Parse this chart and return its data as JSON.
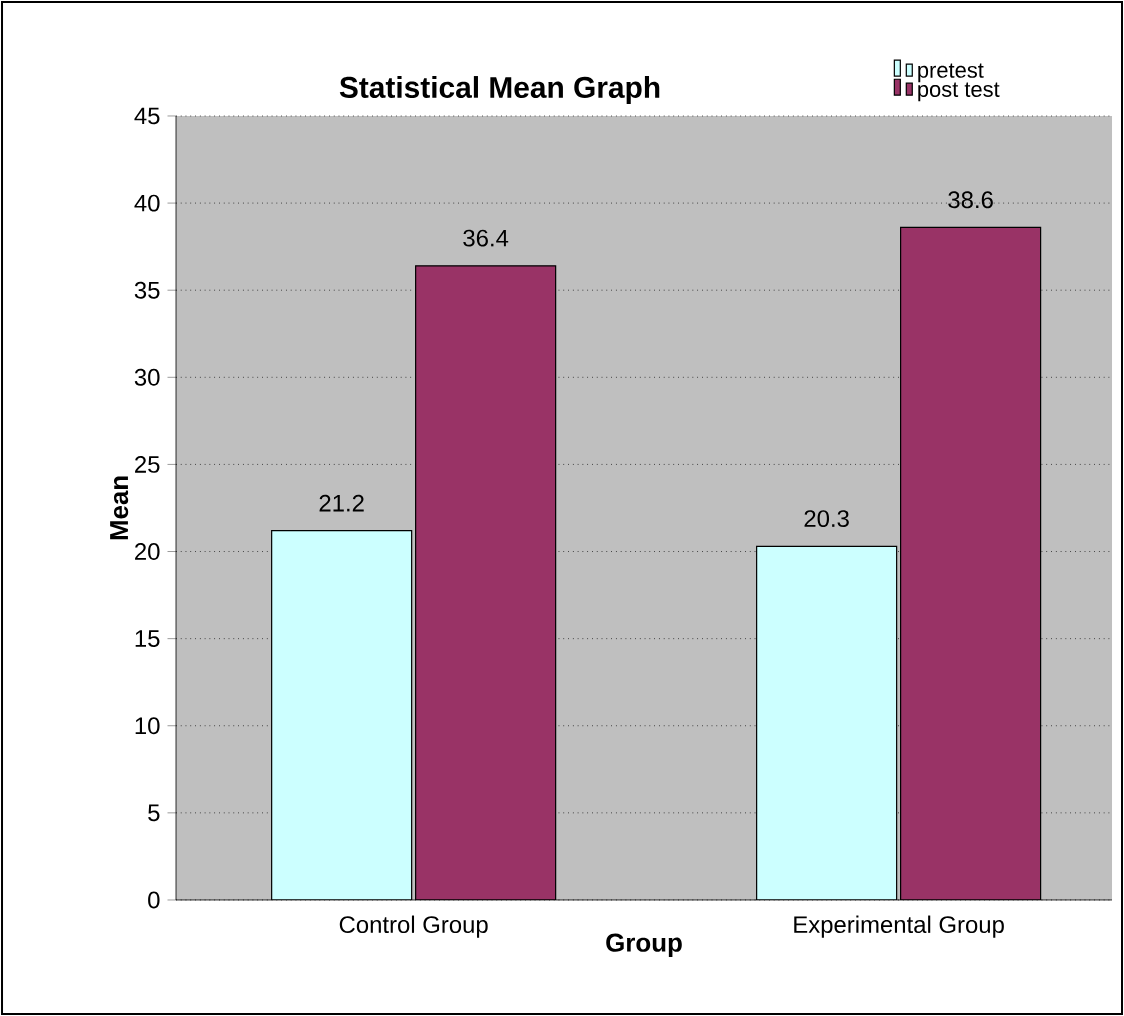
{
  "chart_data": {
    "type": "bar",
    "title": "Statistical Mean Graph",
    "xlabel": "Group",
    "ylabel": "Mean",
    "categories": [
      "Control Group",
      "Experimental Group"
    ],
    "series": [
      {
        "name": "pretest",
        "color": "#ccffff",
        "values": [
          21.2,
          20.3
        ]
      },
      {
        "name": "post test",
        "color": "#993366",
        "values": [
          36.4,
          38.6
        ]
      }
    ],
    "ylim": [
      0,
      45
    ],
    "yticks": [
      0,
      5,
      10,
      15,
      20,
      25,
      30,
      35,
      40,
      45
    ],
    "grid": "y",
    "legend": "top right",
    "data_labels": true
  }
}
